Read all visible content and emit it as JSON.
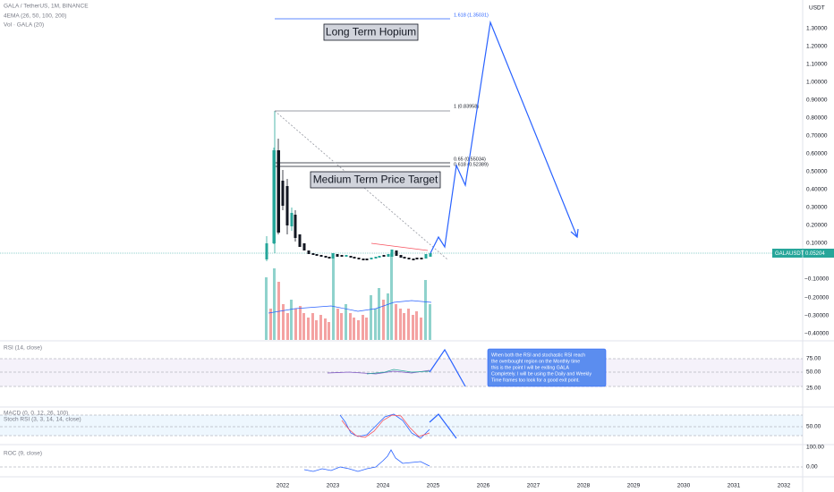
{
  "header": {
    "symbol": "GALA / TetherUS, 1M, BINANCE",
    "indicators": [
      "4EMA (26, 50, 100, 200)",
      "Vol · GALA (20)"
    ],
    "currency": "USDT"
  },
  "price_axis": [
    "1.30000",
    "1.20000",
    "1.10000",
    "1.00000",
    "0.90000",
    "0.80000",
    "0.70000",
    "0.60000",
    "0.50000",
    "0.40000",
    "0.30000",
    "0.20000",
    "0.10000",
    "−0.10000",
    "−0.20000",
    "−0.30000",
    "−0.40000"
  ],
  "price_tag": {
    "symbol": "GALAUSDT",
    "price": "0.05204"
  },
  "fib_levels": [
    "1.618 (1.35031)",
    "1 (0.83958)",
    "0.65 (0.55034)",
    "0.618 (0.52389)"
  ],
  "annotations": [
    "Long Term Hopium",
    "Medium Term Price Target"
  ],
  "panes": [
    {
      "label": "RSI (14, close)",
      "ticks": [
        "75.00",
        "50.00",
        "25.00"
      ]
    },
    {
      "label": "MACD (0, 0, 12, 26, 100)"
    },
    {
      "label": "Stoch RSI (3, 3, 14, 14, close)",
      "ticks": [
        "50.00"
      ]
    },
    {
      "label": "ROC (9, close)",
      "ticks": [
        "100.00",
        "0.00"
      ]
    }
  ],
  "callout": [
    "When both the RSI and stochastic RSI reach",
    "the overbought region on the Monthly time",
    "this is the point I will be exiting GALA",
    "Completely. I will be using the Daily and Weekly",
    "Time frames too look for a good exit point."
  ],
  "time_axis": [
    "2022",
    "2023",
    "2024",
    "2025",
    "2026",
    "2027",
    "2028",
    "2029",
    "2030",
    "2031",
    "2032"
  ]
}
